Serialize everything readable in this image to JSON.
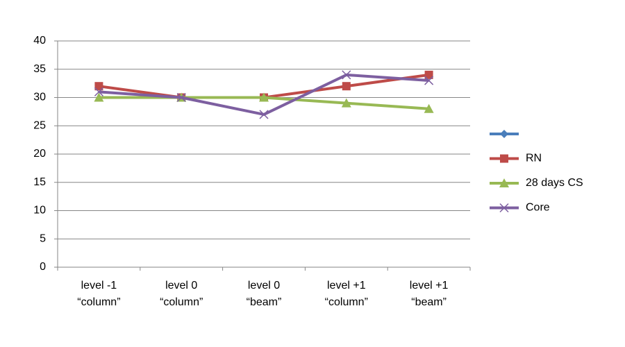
{
  "chart_data": {
    "type": "line",
    "categories": [
      [
        "level -1",
        "“column”"
      ],
      [
        "level 0",
        "“column”"
      ],
      [
        "level 0",
        "“beam”"
      ],
      [
        "level +1",
        "“column”"
      ],
      [
        "level +1",
        "“beam”"
      ]
    ],
    "series": [
      {
        "color": "#4a7ebb",
        "marker": "diamond",
        "values": [
          null,
          null,
          null,
          null,
          null
        ]
      },
      {
        "name": "RN",
        "color": "#be4b48",
        "marker": "square",
        "values": [
          32,
          30,
          30,
          32,
          34
        ]
      },
      {
        "name": "28 days CS",
        "color": "#98b954",
        "marker": "triangle",
        "values": [
          30,
          30,
          30,
          29,
          28
        ]
      },
      {
        "name": "Core",
        "color": "#7d5fa0",
        "marker": "x",
        "values": [
          31,
          30,
          27,
          34,
          33
        ]
      }
    ],
    "ylim": [
      0,
      40
    ],
    "yticks": [
      0,
      5,
      10,
      15,
      20,
      25,
      30,
      35,
      40
    ],
    "grid": true,
    "legend": "right"
  }
}
